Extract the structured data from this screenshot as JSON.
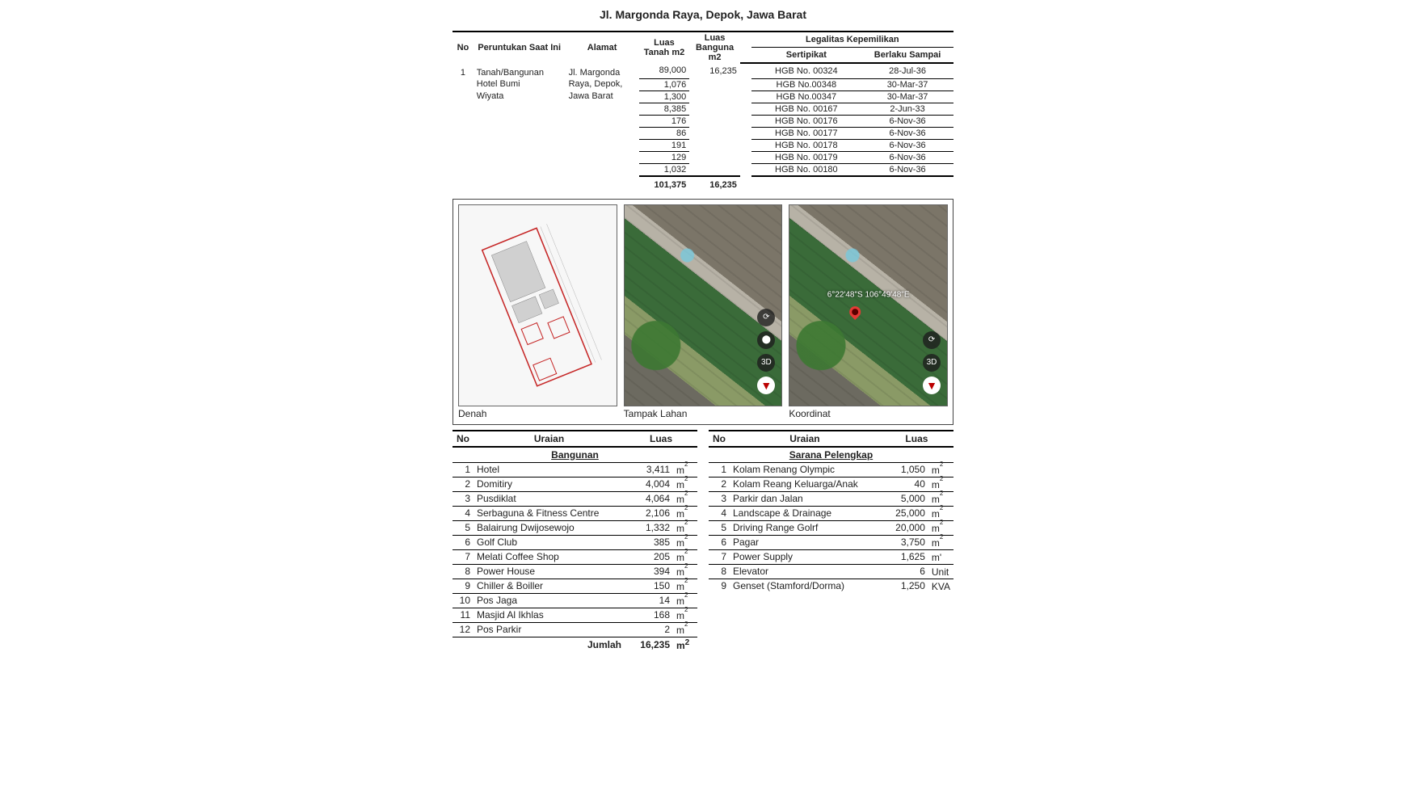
{
  "title": "Jl. Margonda Raya, Depok, Jawa Barat",
  "legal": {
    "headers": {
      "no": "No",
      "peruntukan": "Peruntukan Saat Ini",
      "alamat": "Alamat",
      "luas_tanah": "Luas Tanah m2",
      "luas_bangunan": "Luas Banguna m2",
      "legalitas": "Legalitas Kepemilikan",
      "sertifikat": "Sertipikat",
      "berlaku": "Berlaku Sampai"
    },
    "lot": {
      "no": "1",
      "peruntukan_l1": "Tanah/Bangunan",
      "peruntukan_l2": "Hotel Bumi",
      "peruntukan_l3": "Wiyata",
      "alamat_l1": "Jl. Margonda",
      "alamat_l2": "Raya, Depok,",
      "alamat_l3": "Jawa Barat"
    },
    "rows": [
      {
        "luas_tanah": "89,000",
        "luas_bangunan": "16,235",
        "sertifikat": "HGB No. 00324",
        "berlaku": "28-Jul-36"
      },
      {
        "luas_tanah": "1,076",
        "luas_bangunan": "",
        "sertifikat": "HGB No.00348",
        "berlaku": "30-Mar-37"
      },
      {
        "luas_tanah": "1,300",
        "luas_bangunan": "",
        "sertifikat": "HGB No.00347",
        "berlaku": "30-Mar-37"
      },
      {
        "luas_tanah": "8,385",
        "luas_bangunan": "",
        "sertifikat": "HGB No. 00167",
        "berlaku": "2-Jun-33"
      },
      {
        "luas_tanah": "176",
        "luas_bangunan": "",
        "sertifikat": "HGB No. 00176",
        "berlaku": "6-Nov-36"
      },
      {
        "luas_tanah": "86",
        "luas_bangunan": "",
        "sertifikat": "HGB No. 00177",
        "berlaku": "6-Nov-36"
      },
      {
        "luas_tanah": "191",
        "luas_bangunan": "",
        "sertifikat": "HGB No. 00178",
        "berlaku": "6-Nov-36"
      },
      {
        "luas_tanah": "129",
        "luas_bangunan": "",
        "sertifikat": "HGB No. 00179",
        "berlaku": "6-Nov-36"
      },
      {
        "luas_tanah": "1,032",
        "luas_bangunan": "",
        "sertifikat": "HGB No. 00180",
        "berlaku": "6-Nov-36"
      }
    ],
    "totals": {
      "luas_tanah": "101,375",
      "luas_bangunan": "16,235"
    }
  },
  "images": {
    "denah_label": "Denah",
    "tampak_label": "Tampak Lahan",
    "koordinat_label": "Koordinat",
    "coord_text": "6°22'48\"S 106°49'48\"E",
    "ctrl_3d": "3D"
  },
  "bangunan": {
    "headers": {
      "no": "No",
      "uraian": "Uraian",
      "luas": "Luas"
    },
    "section": "Bangunan",
    "rows": [
      {
        "no": "1",
        "label": "Hotel",
        "val": "3,411",
        "unit": "m",
        "sup": "2"
      },
      {
        "no": "2",
        "label": "Domitiry",
        "val": "4,004",
        "unit": "m",
        "sup": "2"
      },
      {
        "no": "3",
        "label": "Pusdiklat",
        "val": "4,064",
        "unit": "m",
        "sup": "2"
      },
      {
        "no": "4",
        "label": "Serbaguna & Fitness Centre",
        "val": "2,106",
        "unit": "m",
        "sup": "2"
      },
      {
        "no": "5",
        "label": "Balairung Dwijosewojo",
        "val": "1,332",
        "unit": "m",
        "sup": "2"
      },
      {
        "no": "6",
        "label": "Golf Club",
        "val": "385",
        "unit": "m",
        "sup": "2"
      },
      {
        "no": "7",
        "label": "Melati Coffee Shop",
        "val": "205",
        "unit": "m",
        "sup": "2"
      },
      {
        "no": "8",
        "label": "Power House",
        "val": "394",
        "unit": "m",
        "sup": "2"
      },
      {
        "no": "9",
        "label": "Chiller & Boiller",
        "val": "150",
        "unit": "m",
        "sup": "2"
      },
      {
        "no": "10",
        "label": "Pos Jaga",
        "val": "14",
        "unit": "m",
        "sup": "2"
      },
      {
        "no": "11",
        "label": "Masjid Al Ikhlas",
        "val": "168",
        "unit": "m",
        "sup": "2"
      },
      {
        "no": "12",
        "label": "Pos Parkir",
        "val": "2",
        "unit": "m",
        "sup": "2"
      }
    ],
    "total_label": "Jumlah",
    "total_val": "16,235",
    "total_unit": "m",
    "total_sup": "2"
  },
  "sarana": {
    "headers": {
      "no": "No",
      "uraian": "Uraian",
      "luas": "Luas"
    },
    "section": "Sarana Pelengkap",
    "rows": [
      {
        "no": "1",
        "label": "Kolam Renang Olympic",
        "val": "1,050",
        "unit": "m",
        "sup": "2"
      },
      {
        "no": "2",
        "label": "Kolam Reang Keluarga/Anak",
        "val": "40",
        "unit": "m",
        "sup": "2"
      },
      {
        "no": "3",
        "label": "Parkir dan Jalan",
        "val": "5,000",
        "unit": "m",
        "sup": "2"
      },
      {
        "no": "4",
        "label": "Landscape & Drainage",
        "val": "25,000",
        "unit": "m",
        "sup": "2"
      },
      {
        "no": "5",
        "label": "Driving Range Golrf",
        "val": "20,000",
        "unit": "m",
        "sup": "2"
      },
      {
        "no": "6",
        "label": "Pagar",
        "val": "3,750",
        "unit": "m",
        "sup": "2"
      },
      {
        "no": "7",
        "label": "Power Supply",
        "val": "1,625",
        "unit": "m'",
        "sup": ""
      },
      {
        "no": "8",
        "label": "Elevator",
        "val": "6",
        "unit": "Unit",
        "sup": ""
      },
      {
        "no": "9",
        "label": "Genset (Stamford/Dorma)",
        "val": "1,250",
        "unit": "KVA",
        "sup": ""
      }
    ]
  },
  "styling": {
    "font_family": "Arial",
    "text_color": "#222222",
    "border_heavy": "#000000",
    "border_light": "#000000",
    "panel_border": "#444444",
    "plan_outline_color": "#c62828",
    "plan_fill_color": "#bdbdbd",
    "aerial_colors": [
      "#6c6a60",
      "#8a9a66",
      "#3a6b39",
      "#b7b2a6",
      "#7b7568"
    ],
    "pin_color": "#e53935"
  }
}
